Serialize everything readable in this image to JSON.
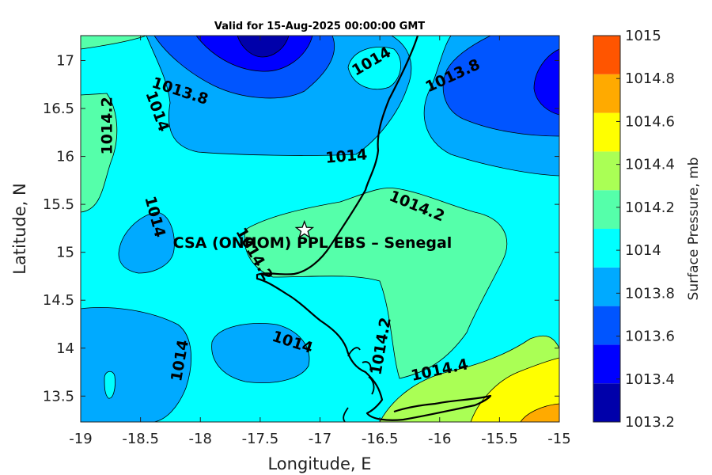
{
  "title": "Valid for 15-Aug-2025 00:00:00 GMT",
  "location_label": "CSA (ONHOM) PPL EBS  – Senegal",
  "xlabel": "Longitude, E",
  "ylabel": "Latitude, N",
  "colorbar_label": "Surface Pressure, mb",
  "x_ticks": [
    "-19",
    "-18.5",
    "-18",
    "-17.5",
    "-17",
    "-16.5",
    "-16",
    "-15.5",
    "-15"
  ],
  "y_ticks": [
    "13.5",
    "14",
    "14.5",
    "15",
    "15.5",
    "16",
    "16.5",
    "17"
  ],
  "colorbar": {
    "levels": [
      "1013.2",
      "1013.4",
      "1013.6",
      "1013.8",
      "1014",
      "1014.2",
      "1014.4",
      "1014.6",
      "1014.8",
      "1015"
    ],
    "colors": [
      "#0000aa",
      "#0000ff",
      "#0055ff",
      "#00aaff",
      "#00ffff",
      "#55ffaa",
      "#aaff55",
      "#ffff00",
      "#ffaa00",
      "#ff5500"
    ]
  },
  "contour_labels": [
    {
      "text": "1014",
      "lon": -16.57,
      "lat": 16.99,
      "angle": -30
    },
    {
      "text": "1013.8",
      "lon": -18.17,
      "lat": 16.68,
      "angle": 18
    },
    {
      "text": "1013.8",
      "lon": -15.89,
      "lat": 16.84,
      "angle": -25
    },
    {
      "text": "1014.2",
      "lon": -18.78,
      "lat": 16.32,
      "angle": -90
    },
    {
      "text": "1014",
      "lon": -18.36,
      "lat": 16.47,
      "angle": 70
    },
    {
      "text": "1014",
      "lon": -16.78,
      "lat": 16.0,
      "angle": -5
    },
    {
      "text": "1014.2",
      "lon": -16.19,
      "lat": 15.48,
      "angle": 22
    },
    {
      "text": "1014",
      "lon": -18.38,
      "lat": 15.37,
      "angle": 75
    },
    {
      "text": "1014.2",
      "lon": -17.55,
      "lat": 14.98,
      "angle": 60
    },
    {
      "text": "1014",
      "lon": -17.23,
      "lat": 14.06,
      "angle": 18
    },
    {
      "text": "1014.2",
      "lon": -16.49,
      "lat": 14.02,
      "angle": -80
    },
    {
      "text": "1014",
      "lon": -18.17,
      "lat": 13.87,
      "angle": -80
    },
    {
      "text": "1014.4",
      "lon": -16.0,
      "lat": 13.77,
      "angle": -12
    }
  ],
  "station_marker": {
    "lon": -17.13,
    "lat": 15.23,
    "symbol": "star"
  }
}
